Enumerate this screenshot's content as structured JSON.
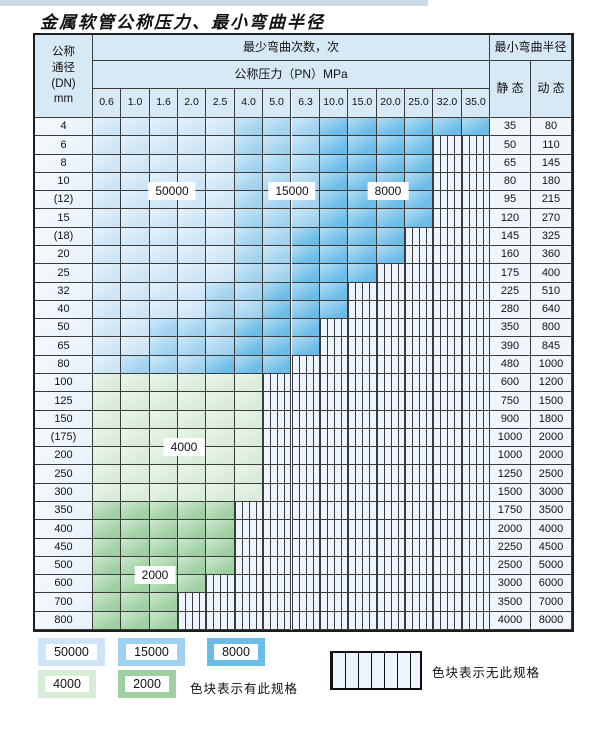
{
  "title": "金属软管公称压力、最小弯曲半径",
  "table": {
    "dn_header_lines": [
      "公称",
      "通径",
      "(DN)",
      "mm"
    ],
    "bend_cycles_header": "最少弯曲次数，次",
    "pressure_header": "公称压力（PN）MPa",
    "radius_header": "最小弯曲半径",
    "static_header": "静 态",
    "dynamic_header": "动 态",
    "pressure_columns": [
      "0.6",
      "1.0",
      "1.6",
      "2.0",
      "2.5",
      "4.0",
      "5.0",
      "6.3",
      "10.0",
      "15.0",
      "20.0",
      "25.0",
      "32.0",
      "35.0"
    ],
    "rows": [
      {
        "dn": "4",
        "bands": [
          [
            "b50000",
            5
          ],
          [
            "b15000",
            3
          ],
          [
            "b8000",
            6
          ]
        ],
        "static": "35",
        "dynamic": "80"
      },
      {
        "dn": "6",
        "bands": [
          [
            "b50000",
            5
          ],
          [
            "b15000",
            3
          ],
          [
            "b8000",
            4
          ]
        ],
        "static": "50",
        "dynamic": "110"
      },
      {
        "dn": "8",
        "bands": [
          [
            "b50000",
            5
          ],
          [
            "b15000",
            3
          ],
          [
            "b8000",
            4
          ]
        ],
        "static": "65",
        "dynamic": "145"
      },
      {
        "dn": "10",
        "bands": [
          [
            "b50000",
            5
          ],
          [
            "b15000",
            3
          ],
          [
            "b8000",
            4
          ]
        ],
        "static": "80",
        "dynamic": "180"
      },
      {
        "dn": "(12)",
        "bands": [
          [
            "b50000",
            5
          ],
          [
            "b15000",
            3
          ],
          [
            "b8000",
            4
          ]
        ],
        "static": "95",
        "dynamic": "215"
      },
      {
        "dn": "15",
        "bands": [
          [
            "b50000",
            5
          ],
          [
            "b15000",
            3
          ],
          [
            "b8000",
            4
          ]
        ],
        "static": "120",
        "dynamic": "270"
      },
      {
        "dn": "(18)",
        "bands": [
          [
            "b50000",
            5
          ],
          [
            "b15000",
            2
          ],
          [
            "b8000",
            4
          ]
        ],
        "static": "145",
        "dynamic": "325"
      },
      {
        "dn": "20",
        "bands": [
          [
            "b50000",
            5
          ],
          [
            "b15000",
            2
          ],
          [
            "b8000",
            4
          ]
        ],
        "static": "160",
        "dynamic": "360"
      },
      {
        "dn": "25",
        "bands": [
          [
            "b50000",
            5
          ],
          [
            "b15000",
            2
          ],
          [
            "b8000",
            3
          ]
        ],
        "static": "175",
        "dynamic": "400"
      },
      {
        "dn": "32",
        "bands": [
          [
            "b50000",
            4
          ],
          [
            "b15000",
            2
          ],
          [
            "b8000",
            3
          ]
        ],
        "static": "225",
        "dynamic": "510"
      },
      {
        "dn": "40",
        "bands": [
          [
            "b50000",
            4
          ],
          [
            "b15000",
            2
          ],
          [
            "b8000",
            3
          ]
        ],
        "static": "280",
        "dynamic": "640"
      },
      {
        "dn": "50",
        "bands": [
          [
            "b50000",
            2
          ],
          [
            "b15000",
            3
          ],
          [
            "b8000",
            3
          ]
        ],
        "static": "350",
        "dynamic": "800"
      },
      {
        "dn": "65",
        "bands": [
          [
            "b50000",
            2
          ],
          [
            "b15000",
            3
          ],
          [
            "b8000",
            3
          ]
        ],
        "static": "390",
        "dynamic": "845"
      },
      {
        "dn": "80",
        "bands": [
          [
            "b50000",
            1
          ],
          [
            "b15000",
            3
          ],
          [
            "b8000",
            3
          ]
        ],
        "static": "480",
        "dynamic": "1000"
      },
      {
        "dn": "100",
        "bands": [
          [
            "g4000",
            6
          ]
        ],
        "static": "600",
        "dynamic": "1200"
      },
      {
        "dn": "125",
        "bands": [
          [
            "g4000",
            6
          ]
        ],
        "static": "750",
        "dynamic": "1500"
      },
      {
        "dn": "150",
        "bands": [
          [
            "g4000",
            6
          ]
        ],
        "static": "900",
        "dynamic": "1800"
      },
      {
        "dn": "(175)",
        "bands": [
          [
            "g4000",
            6
          ]
        ],
        "static": "1000",
        "dynamic": "2000"
      },
      {
        "dn": "200",
        "bands": [
          [
            "g4000",
            6
          ]
        ],
        "static": "1000",
        "dynamic": "2000"
      },
      {
        "dn": "250",
        "bands": [
          [
            "g4000",
            6
          ]
        ],
        "static": "1250",
        "dynamic": "2500"
      },
      {
        "dn": "300",
        "bands": [
          [
            "g4000",
            6
          ]
        ],
        "static": "1500",
        "dynamic": "3000"
      },
      {
        "dn": "350",
        "bands": [
          [
            "g2000",
            5
          ]
        ],
        "static": "1750",
        "dynamic": "3500"
      },
      {
        "dn": "400",
        "bands": [
          [
            "g2000",
            5
          ]
        ],
        "static": "2000",
        "dynamic": "4000"
      },
      {
        "dn": "450",
        "bands": [
          [
            "g2000",
            5
          ]
        ],
        "static": "2250",
        "dynamic": "4500"
      },
      {
        "dn": "500",
        "bands": [
          [
            "g2000",
            5
          ]
        ],
        "static": "2500",
        "dynamic": "5000"
      },
      {
        "dn": "600",
        "bands": [
          [
            "g2000",
            4
          ]
        ],
        "static": "3000",
        "dynamic": "6000"
      },
      {
        "dn": "700",
        "bands": [
          [
            "g2000",
            3
          ]
        ],
        "static": "3500",
        "dynamic": "7000"
      },
      {
        "dn": "800",
        "bands": [
          [
            "g2000",
            3
          ]
        ],
        "static": "4000",
        "dynamic": "8000"
      }
    ]
  },
  "cycle_labels": [
    {
      "text": "50000",
      "col": 2.8,
      "row": 4.0
    },
    {
      "text": "15000",
      "col": 7.0,
      "row": 4.0
    },
    {
      "text": "8000",
      "col": 10.4,
      "row": 4.0
    },
    {
      "text": "4000",
      "col": 3.2,
      "row": 18.0
    },
    {
      "text": "2000",
      "col": 2.2,
      "row": 25.0
    }
  ],
  "legend": {
    "swatches": [
      {
        "label": "50000",
        "color": "b50000"
      },
      {
        "label": "15000",
        "color": "b15000"
      },
      {
        "label": "8000",
        "color": "b8000"
      },
      {
        "label": "4000",
        "color": "g4000"
      },
      {
        "label": "2000",
        "color": "g2000"
      }
    ],
    "has_spec_note": "色块表示有此规格",
    "no_spec_note": "色块表示无此规格"
  },
  "colors": {
    "b50000": "#cde5f6",
    "b15000": "#a0d2ef",
    "b8000": "#6cbce7",
    "g4000": "#d9ecd8",
    "g2000": "#9ed0a1",
    "striped_bg": "#edf4fb",
    "grid_line": "#3b3b3b",
    "header_bg": "#d8e9f6",
    "label_col_bg": "#e7f1fa",
    "value_col_bg": "#f0f6fb"
  },
  "chart_data": {
    "type": "heatmap",
    "title": "金属软管公称压力、最小弯曲半径",
    "x_categories_pressure_MPa": [
      "0.6",
      "1.0",
      "1.6",
      "2.0",
      "2.5",
      "4.0",
      "5.0",
      "6.3",
      "10.0",
      "15.0",
      "20.0",
      "25.0",
      "32.0",
      "35.0"
    ],
    "y_categories_DN_mm": [
      "4",
      "6",
      "8",
      "10",
      "(12)",
      "15",
      "(18)",
      "20",
      "25",
      "32",
      "40",
      "50",
      "65",
      "80",
      "100",
      "125",
      "150",
      "(175)",
      "200",
      "250",
      "300",
      "350",
      "400",
      "450",
      "500",
      "600",
      "700",
      "800"
    ],
    "cell_values_bend_cycles": "encoded in table.rows bands: b50000=50000次, b15000=15000次, b8000=8000次, g4000=4000次, g2000=2000次, remaining columns=无此规格(striped)",
    "min_bend_radius_static": [
      35,
      50,
      65,
      80,
      95,
      120,
      145,
      160,
      175,
      225,
      280,
      350,
      390,
      480,
      600,
      750,
      900,
      1000,
      1000,
      1250,
      1500,
      1750,
      2000,
      2250,
      2500,
      3000,
      3500,
      4000
    ],
    "min_bend_radius_dynamic": [
      80,
      110,
      145,
      180,
      215,
      270,
      325,
      360,
      400,
      510,
      640,
      800,
      845,
      1000,
      1200,
      1500,
      1800,
      2000,
      2000,
      2500,
      3000,
      3500,
      4000,
      4500,
      5000,
      6000,
      7000,
      8000
    ]
  }
}
